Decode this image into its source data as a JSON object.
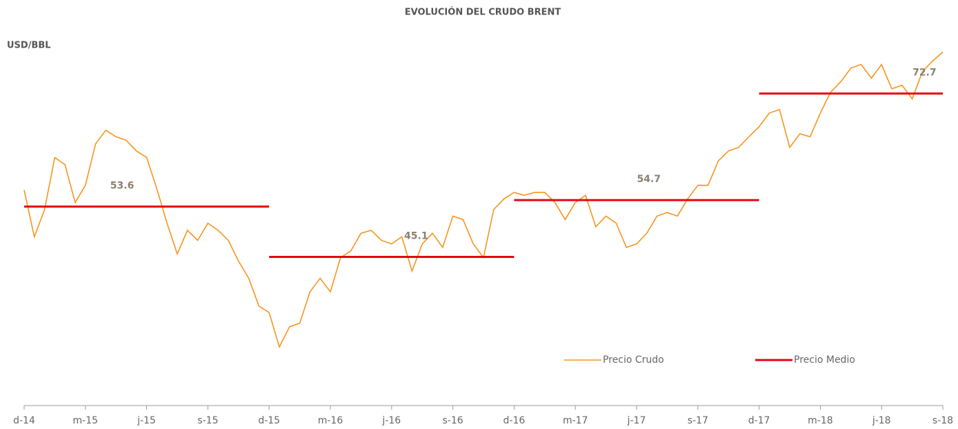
{
  "chart_data": {
    "type": "line",
    "title": "EVOLUCIÓN DEL CRUDO BRENT",
    "y_label": "USD/BBL",
    "xlim": [
      0,
      45
    ],
    "xticks": [
      {
        "value": 0,
        "label": "d-14"
      },
      {
        "value": 3,
        "label": "m-15"
      },
      {
        "value": 6,
        "label": "j-15"
      },
      {
        "value": 9,
        "label": "s-15"
      },
      {
        "value": 12,
        "label": "d-15"
      },
      {
        "value": 15,
        "label": "m-16"
      },
      {
        "value": 18,
        "label": "j-16"
      },
      {
        "value": 21,
        "label": "s-16"
      },
      {
        "value": 24,
        "label": "d-16"
      },
      {
        "value": 27,
        "label": "m-17"
      },
      {
        "value": 30,
        "label": "j-17"
      },
      {
        "value": 33,
        "label": "s-17"
      },
      {
        "value": 36,
        "label": "d-17"
      },
      {
        "value": 39,
        "label": "m-18"
      },
      {
        "value": 42,
        "label": "j-18"
      },
      {
        "value": 45,
        "label": "s-18"
      }
    ],
    "ylim": [
      20,
      85
    ],
    "x": [
      0,
      0.5,
      1,
      1.5,
      2,
      2.5,
      3,
      3.5,
      4,
      4.5,
      5,
      5.5,
      6,
      6.5,
      7,
      7.5,
      8,
      8.5,
      9,
      9.5,
      10,
      10.5,
      11,
      11.5,
      12,
      12.5,
      13,
      13.5,
      14,
      14.5,
      15,
      15.5,
      16,
      16.5,
      17,
      17.5,
      18,
      18.5,
      19,
      19.5,
      20,
      20.5,
      21,
      21.5,
      22,
      22.5,
      23,
      23.5,
      24,
      24.5,
      25,
      25.5,
      26,
      26.5,
      27,
      27.5,
      28,
      28.5,
      29,
      29.5,
      30,
      30.5,
      31,
      31.5,
      32,
      32.5,
      33,
      33.5,
      34,
      34.5,
      35,
      35.5,
      36,
      36.5,
      37,
      37.5,
      38,
      38.5,
      39,
      39.5,
      40,
      40.5,
      41,
      41.5,
      42,
      42.5,
      43,
      43.5,
      44,
      44.5,
      45
    ],
    "series": [
      {
        "name": "Precio Crudo",
        "color": "#f7941d",
        "values": [
          56.4,
          48.5,
          53.1,
          61.9,
          60.7,
          54.3,
          57.2,
          64.2,
          66.5,
          65.4,
          64.8,
          63.0,
          61.9,
          56.6,
          50.8,
          45.6,
          49.6,
          47.9,
          50.8,
          49.6,
          47.9,
          44.4,
          41.5,
          36.8,
          35.7,
          29.9,
          33.3,
          33.9,
          39.2,
          41.5,
          39.2,
          45.0,
          46.1,
          49.1,
          49.6,
          47.9,
          47.3,
          48.5,
          42.7,
          47.3,
          49.1,
          46.7,
          52.0,
          51.4,
          47.3,
          45.0,
          53.1,
          54.9,
          56.0,
          55.5,
          56.0,
          56.0,
          54.3,
          51.4,
          54.3,
          55.5,
          50.2,
          52.0,
          50.8,
          46.7,
          47.3,
          49.1,
          52.0,
          52.6,
          52.0,
          54.9,
          57.2,
          57.2,
          61.3,
          63.0,
          63.6,
          65.4,
          67.1,
          69.4,
          70.0,
          63.6,
          65.9,
          65.4,
          69.4,
          72.9,
          74.7,
          77.0,
          77.6,
          75.3,
          77.6,
          73.5,
          74.1,
          71.8,
          76.4,
          78.2,
          79.7
        ]
      },
      {
        "name": "Precio Medio",
        "color": "#e30613",
        "segments": [
          {
            "x": [
              0,
              12
            ],
            "value": 53.6
          },
          {
            "x": [
              12,
              24
            ],
            "value": 45.1
          },
          {
            "x": [
              24,
              36
            ],
            "value": 54.7
          },
          {
            "x": [
              36,
              45
            ],
            "value": 72.7
          }
        ]
      }
    ]
  }
}
